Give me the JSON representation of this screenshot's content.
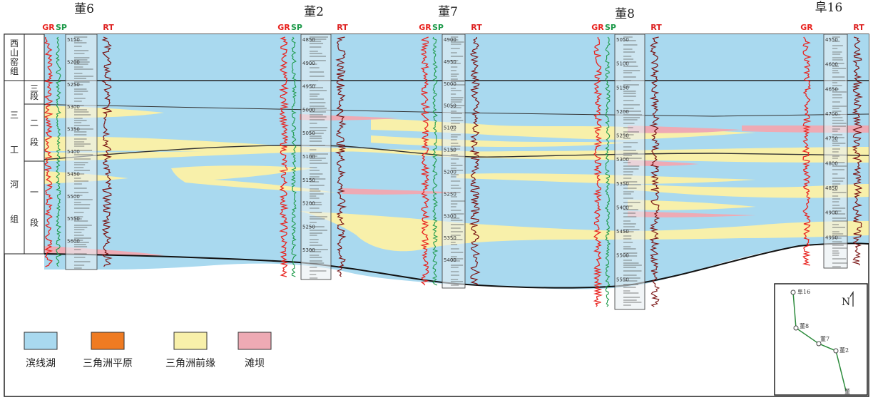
{
  "wells": [
    {
      "name": "董6",
      "curves": [
        "GR",
        "SP",
        "RT"
      ],
      "depths": [
        "5150",
        "5200",
        "5250",
        "5300",
        "5350",
        "5400",
        "5450",
        "5500",
        "5550",
        "5600"
      ]
    },
    {
      "name": "董2",
      "curves": [
        "GR",
        "SP",
        "RT"
      ],
      "depths": [
        "4850",
        "4900",
        "4950",
        "5000",
        "5050",
        "5100",
        "5150",
        "5200",
        "5250",
        "5300"
      ]
    },
    {
      "name": "董7",
      "curves": [
        "GR",
        "SP",
        "RT"
      ],
      "depths": [
        "4900",
        "4950",
        "5000",
        "5050",
        "5100",
        "5150",
        "5200",
        "5250",
        "5300",
        "5350",
        "5400"
      ]
    },
    {
      "name": "董8",
      "curves": [
        "GR",
        "SP",
        "RT"
      ],
      "depths": [
        "5050",
        "5100",
        "5150",
        "5200",
        "5250",
        "5300",
        "5350",
        "5400",
        "5450",
        "5500",
        "5550"
      ]
    },
    {
      "name": "阜16",
      "curves": [
        "GR",
        "RT"
      ],
      "depths": [
        "4550",
        "4600",
        "4650",
        "4700",
        "4750",
        "4800",
        "4850",
        "4900",
        "4950"
      ]
    }
  ],
  "strat": {
    "formation_upper": "西山窑组",
    "formation_lower": "三工河组",
    "member3": "三段",
    "member2": "二段",
    "member1": "一段"
  },
  "legend": [
    {
      "label": "滨线湖",
      "color": "#a9d9ef"
    },
    {
      "label": "三角洲平原",
      "color": "#ef7b22"
    },
    {
      "label": "三角洲前缘",
      "color": "#f8f0aa"
    },
    {
      "label": "滩坝",
      "color": "#eeaab4"
    }
  ],
  "map": {
    "north": "N",
    "wells": [
      "阜16",
      "董8",
      "董7",
      "董2",
      "董"
    ]
  },
  "colors": {
    "lake": "#a9d9ef",
    "front": "#f8f0aa",
    "bar": "#eeaab4",
    "gr": "#e8231f",
    "sp": "#1e9a4a",
    "rt": "#7a1414"
  }
}
